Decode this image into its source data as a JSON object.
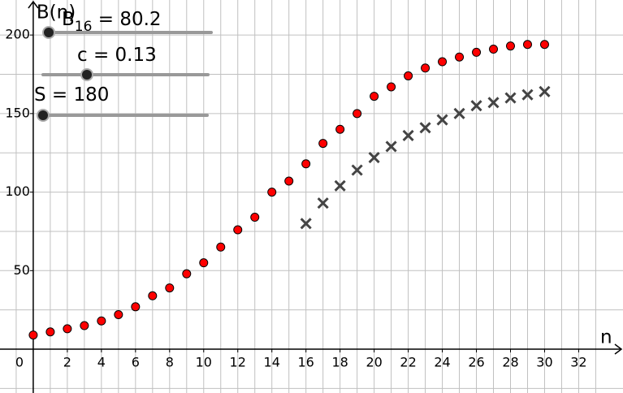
{
  "chart_data": {
    "type": "scatter",
    "x_label": "n",
    "y_label": "B(n)",
    "xlim": [
      -1.95,
      34.6
    ],
    "ylim": [
      -27.9,
      222.3
    ],
    "xticks": [
      0,
      2,
      4,
      6,
      8,
      10,
      12,
      14,
      16,
      18,
      20,
      22,
      24,
      26,
      28,
      30,
      32
    ],
    "yticks": [
      50,
      100,
      150,
      200
    ],
    "grid": true,
    "series": [
      {
        "marker": "circle",
        "color": "#ff0000",
        "x": [
          0,
          1,
          2,
          3,
          4,
          5,
          6,
          7,
          8,
          9,
          10,
          11,
          12,
          13,
          14,
          15,
          16,
          17,
          18,
          19,
          20,
          21,
          22,
          23,
          24,
          25,
          26,
          27,
          28,
          29,
          30
        ],
        "values": [
          9,
          11,
          13,
          15,
          18,
          22,
          27,
          34,
          39,
          48,
          55,
          65,
          76,
          84,
          100,
          107,
          118,
          131,
          140,
          150,
          161,
          167,
          174,
          179,
          183,
          186,
          189,
          191,
          193,
          194,
          194
        ]
      },
      {
        "marker": "cross",
        "color": "#444444",
        "x": [
          16,
          17,
          18,
          19,
          20,
          21,
          22,
          23,
          24,
          25,
          26,
          27,
          28,
          29,
          30
        ],
        "values": [
          80,
          93,
          104,
          114,
          122,
          129,
          136,
          141,
          146,
          150,
          155,
          157,
          160,
          162,
          164
        ]
      }
    ],
    "sliders": [
      {
        "name": "B",
        "subscript": "16",
        "value_label": " = 80.2",
        "value": 80.2
      },
      {
        "name": "c",
        "value_label": " = 0.13",
        "value": 0.13
      },
      {
        "name": "S",
        "value_label": " = 180",
        "value": 180
      }
    ]
  }
}
